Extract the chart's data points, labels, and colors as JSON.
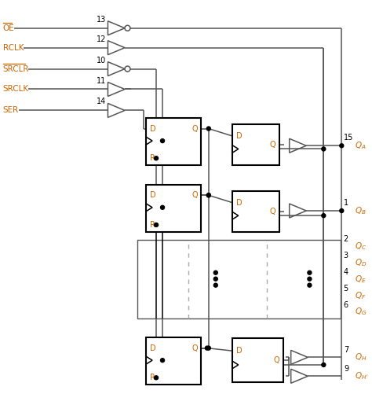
{
  "line_color": "#555555",
  "line_color_dark": "#000000",
  "orange": "#cc6600",
  "blue_pin": "#0000cc",
  "bg": "#ffffff",
  "inputs": [
    {
      "name": "OE",
      "pin": "13",
      "inv": true
    },
    {
      "name": "RCLK",
      "pin": "12",
      "inv": false
    },
    {
      "name": "SRCLR",
      "pin": "10",
      "inv": true
    },
    {
      "name": "SRCLK",
      "pin": "11",
      "inv": false
    },
    {
      "name": "SER",
      "pin": "14",
      "inv": false
    }
  ]
}
